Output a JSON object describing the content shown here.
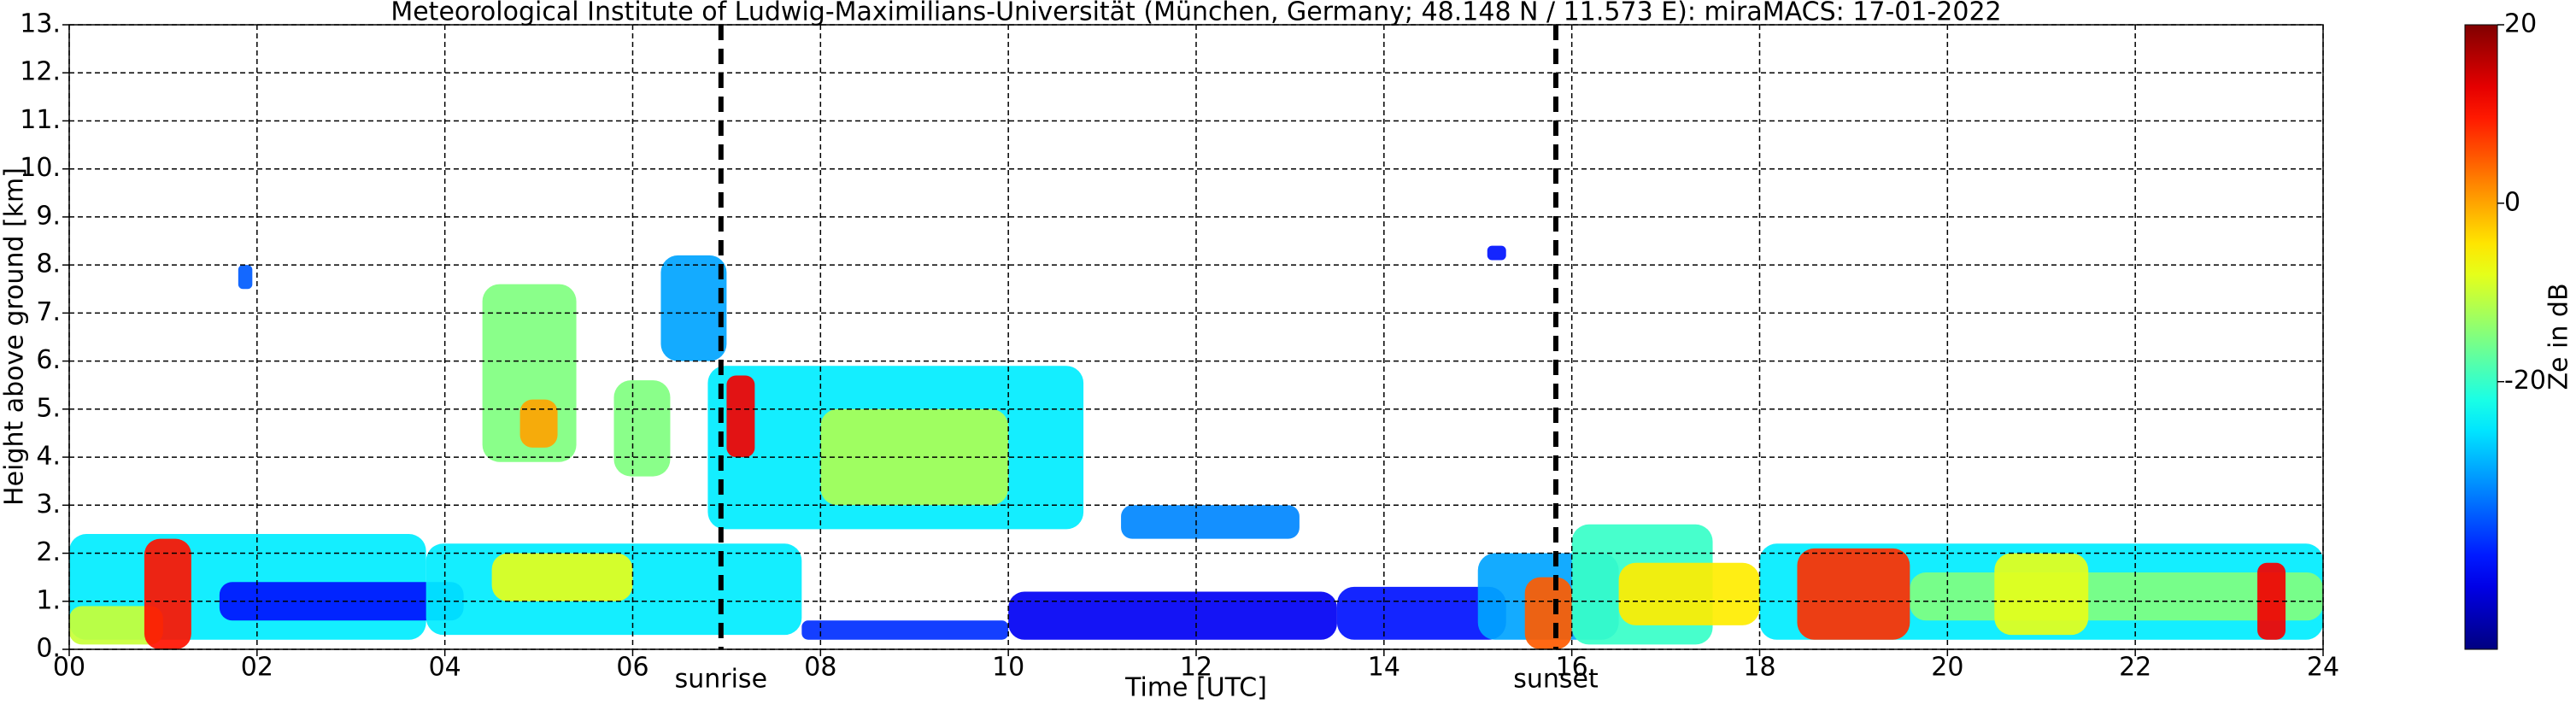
{
  "chart_data": {
    "type": "radar",
    "title": "Meteorological Institute of Ludwig-Maximilians-Universität (München, Germany; 48.148 N / 11.573 E):    miraMACS: 17-01-2022",
    "x_label": "Time [UTC]",
    "y_label": "Height above ground [km]",
    "colorbar_label": "Ze in dB",
    "xlim": [
      0,
      24
    ],
    "xticks": [
      {
        "value": 0,
        "label": "00"
      },
      {
        "value": 2,
        "label": "02"
      },
      {
        "value": 4,
        "label": "04"
      },
      {
        "value": 6,
        "label": "06"
      },
      {
        "value": 8,
        "label": "08"
      },
      10,
      12,
      14,
      16,
      18,
      20,
      22,
      24
    ],
    "ylim": [
      0,
      13
    ],
    "yticks": [
      {
        "value": 0,
        "label": "0."
      },
      {
        "value": 1,
        "label": "1."
      },
      {
        "value": 2,
        "label": "2."
      },
      {
        "value": 3,
        "label": "3."
      },
      {
        "value": 4,
        "label": "4."
      },
      {
        "value": 5,
        "label": "5."
      },
      {
        "value": 6,
        "label": "6."
      },
      {
        "value": 7,
        "label": "7."
      },
      {
        "value": 8,
        "label": "8."
      },
      {
        "value": 9,
        "label": "9."
      },
      {
        "value": 10,
        "label": "10."
      },
      {
        "value": 11,
        "label": "11."
      },
      {
        "value": 12,
        "label": "12."
      },
      {
        "value": 13,
        "label": "13."
      }
    ],
    "clim": [
      -50,
      20
    ],
    "cticks": [
      -20,
      0,
      20
    ],
    "colormap": "jet",
    "grid": true,
    "markers": [
      {
        "x": 6.94,
        "label": "sunrise"
      },
      {
        "x": 15.83,
        "label": "sunset"
      }
    ],
    "echoes": [
      {
        "x": [
          0,
          3.8
        ],
        "y": [
          0.2,
          2.4
        ],
        "value": -25
      },
      {
        "x": [
          1.6,
          4.2
        ],
        "y": [
          0.6,
          1.4
        ],
        "value": -40
      },
      {
        "x": [
          0,
          1.0
        ],
        "y": [
          0.1,
          0.9
        ],
        "value": -10
      },
      {
        "x": [
          0.8,
          1.3
        ],
        "y": [
          0,
          2.3
        ],
        "value": 10
      },
      {
        "x": [
          3.8,
          7.8
        ],
        "y": [
          0.3,
          2.2
        ],
        "value": -25
      },
      {
        "x": [
          4.5,
          6.0
        ],
        "y": [
          1.0,
          2.0
        ],
        "value": -8
      },
      {
        "x": [
          4.4,
          5.4
        ],
        "y": [
          3.9,
          7.6
        ],
        "value": -15
      },
      {
        "x": [
          4.8,
          5.2
        ],
        "y": [
          4.2,
          5.2
        ],
        "value": 0
      },
      {
        "x": [
          5.8,
          6.4
        ],
        "y": [
          3.6,
          5.6
        ],
        "value": -15
      },
      {
        "x": [
          6.3,
          7.0
        ],
        "y": [
          6.0,
          8.2
        ],
        "value": -30
      },
      {
        "x": [
          6.8,
          10.8
        ],
        "y": [
          2.5,
          5.9
        ],
        "value": -25
      },
      {
        "x": [
          8.0,
          10.0
        ],
        "y": [
          3.0,
          5.0
        ],
        "value": -12
      },
      {
        "x": [
          7.0,
          7.3
        ],
        "y": [
          4.0,
          5.7
        ],
        "value": 12
      },
      {
        "x": [
          7.8,
          10.0
        ],
        "y": [
          0.2,
          0.6
        ],
        "value": -38
      },
      {
        "x": [
          11.2,
          13.1
        ],
        "y": [
          2.3,
          3.0
        ],
        "value": -32
      },
      {
        "x": [
          10.0,
          13.5
        ],
        "y": [
          0.2,
          1.2
        ],
        "value": -42
      },
      {
        "x": [
          13.5,
          15.3
        ],
        "y": [
          0.2,
          1.3
        ],
        "value": -40
      },
      {
        "x": [
          15.0,
          16.5
        ],
        "y": [
          0.2,
          2.0
        ],
        "value": -30
      },
      {
        "x": [
          15.5,
          16.0
        ],
        "y": [
          0,
          1.5
        ],
        "value": 5
      },
      {
        "x": [
          16.0,
          17.5
        ],
        "y": [
          0.1,
          2.6
        ],
        "value": -20
      },
      {
        "x": [
          16.5,
          18.0
        ],
        "y": [
          0.5,
          1.8
        ],
        "value": -5
      },
      {
        "x": [
          18.0,
          24
        ],
        "y": [
          0.2,
          2.2
        ],
        "value": -25
      },
      {
        "x": [
          19.6,
          24
        ],
        "y": [
          0.6,
          1.6
        ],
        "value": -15
      },
      {
        "x": [
          18.4,
          19.6
        ],
        "y": [
          0.2,
          2.1
        ],
        "value": 8
      },
      {
        "x": [
          20.5,
          21.5
        ],
        "y": [
          0.3,
          2.0
        ],
        "value": -8
      },
      {
        "x": [
          23.3,
          23.6
        ],
        "y": [
          0.2,
          1.8
        ],
        "value": 12
      },
      {
        "x": [
          1.8,
          1.95
        ],
        "y": [
          7.5,
          8.0
        ],
        "value": -35
      },
      {
        "x": [
          15.1,
          15.3
        ],
        "y": [
          8.1,
          8.4
        ],
        "value": -40
      }
    ]
  }
}
